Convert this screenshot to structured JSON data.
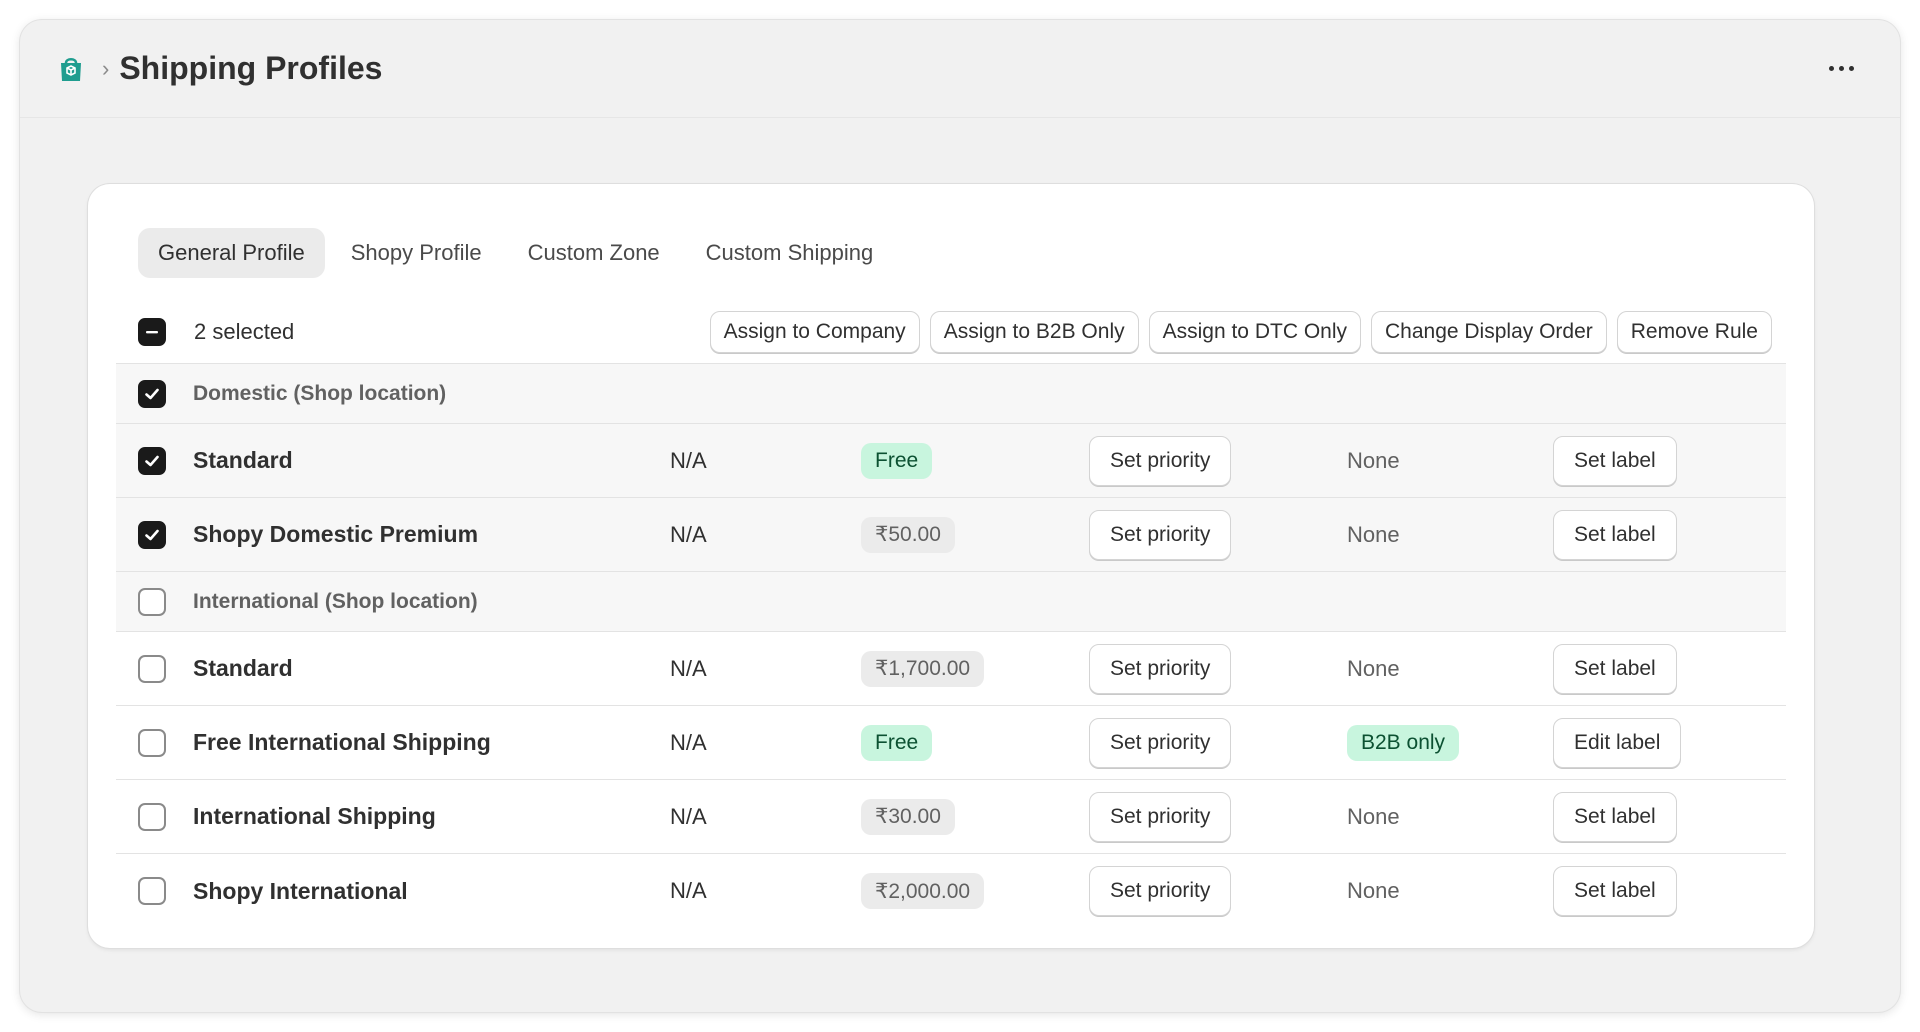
{
  "header": {
    "app_icon": "shopping-bag-box-icon",
    "breadcrumb_separator": "›",
    "title": "Shipping Profiles",
    "more_icon": "ellipsis-horizontal-icon"
  },
  "tabs": [
    {
      "label": "General Profile",
      "active": true
    },
    {
      "label": "Shopy Profile",
      "active": false
    },
    {
      "label": "Custom Zone",
      "active": false
    },
    {
      "label": "Custom Shipping",
      "active": false
    }
  ],
  "bulk": {
    "selected_text": "2 selected",
    "actions": [
      "Assign to Company",
      "Assign to B2B Only",
      "Assign to DTC Only",
      "Change Display Order",
      "Remove Rule"
    ]
  },
  "groups": [
    {
      "label": "Domestic (Shop location)",
      "checked": true,
      "rows": [
        {
          "name": "Standard",
          "condition": "N/A",
          "price": "Free",
          "price_style": "green",
          "priority_label": "Set priority",
          "tag": "None",
          "label_action": "Set label",
          "checked": true
        },
        {
          "name": "Shopy Domestic Premium",
          "condition": "N/A",
          "price": "₹50.00",
          "price_style": "grey",
          "priority_label": "Set priority",
          "tag": "None",
          "label_action": "Set label",
          "checked": true
        }
      ]
    },
    {
      "label": "International (Shop location)",
      "checked": false,
      "rows": [
        {
          "name": "Standard",
          "condition": "N/A",
          "price": "₹1,700.00",
          "price_style": "grey",
          "priority_label": "Set priority",
          "tag": "None",
          "label_action": "Set label",
          "checked": false
        },
        {
          "name": "Free International Shipping",
          "condition": "N/A",
          "price": "Free",
          "price_style": "green",
          "priority_label": "Set priority",
          "tag": "B2B only",
          "tag_style": "green",
          "label_action": "Edit label",
          "checked": false
        },
        {
          "name": "International Shipping",
          "condition": "N/A",
          "price": "₹30.00",
          "price_style": "grey",
          "priority_label": "Set priority",
          "tag": "None",
          "label_action": "Set label",
          "checked": false
        },
        {
          "name": "Shopy International",
          "condition": "N/A",
          "price": "₹2,000.00",
          "price_style": "grey",
          "priority_label": "Set priority",
          "tag": "None",
          "label_action": "Set label",
          "checked": false
        }
      ]
    }
  ],
  "colors": {
    "accent_green": "#c8f5de",
    "badge_grey": "#ebebeb",
    "app_icon": "#1f9d8f"
  }
}
